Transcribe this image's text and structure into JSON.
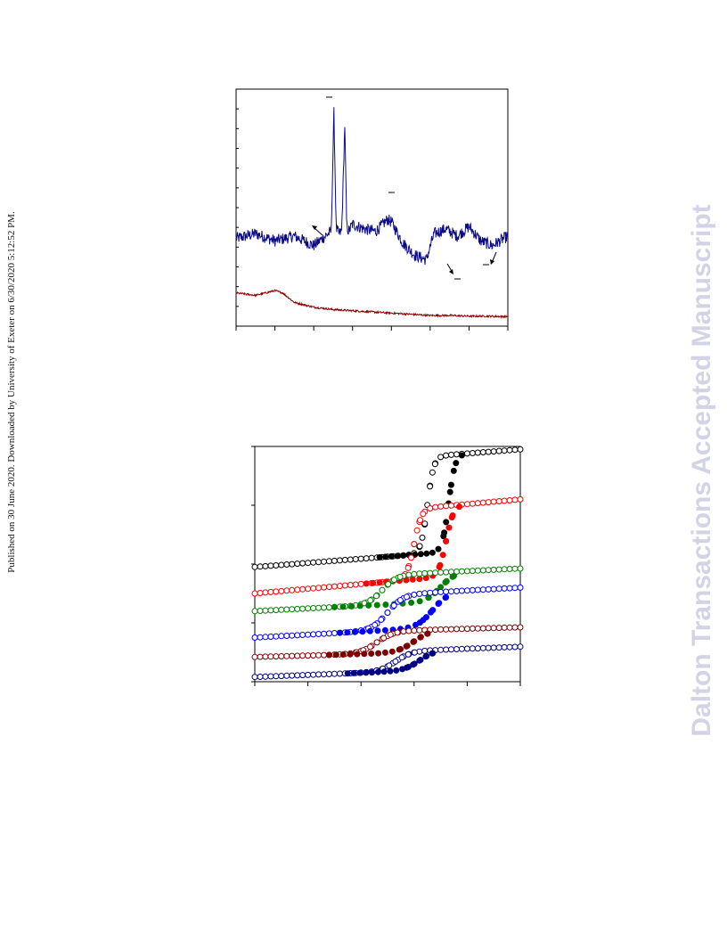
{
  "margin_note": "Published on 30 June 2020. Downloaded by University of Exeter on 6/30/2020 5:12:52 PM.",
  "watermark": "Dalton Transactions Accepted Manuscript",
  "colors": {
    "navy": "#0a0a8a",
    "darkred": "#8b0000",
    "black": "#000000",
    "red": "#ff0000",
    "green": "#008000",
    "blue": "#0000ff",
    "maroon": "#800000",
    "darkblue": "#000080"
  },
  "chart_data": [
    {
      "type": "line",
      "title": "",
      "xlabel": "",
      "ylabel": "",
      "grid": false,
      "x_range": [
        0,
        7
      ],
      "y_range": [
        0,
        10
      ],
      "x_ticks": 7,
      "y_ticks": 12,
      "series": [
        {
          "color": "navy",
          "x": [
            0.0,
            0.5,
            1.0,
            1.5,
            2.0,
            2.3,
            2.45,
            2.52,
            2.58,
            2.65,
            2.72,
            2.8,
            2.85,
            2.9,
            3.0,
            3.3,
            3.6,
            3.9,
            4.0,
            4.3,
            4.6,
            4.9,
            5.1,
            5.4,
            5.7,
            6.0,
            6.3,
            6.6,
            7.0
          ],
          "y": [
            3.7,
            3.9,
            3.6,
            3.8,
            3.4,
            3.8,
            4.0,
            9.0,
            4.1,
            3.9,
            4.0,
            8.5,
            4.2,
            4.0,
            4.3,
            4.1,
            4.0,
            4.5,
            4.4,
            3.5,
            3.0,
            2.8,
            3.9,
            4.1,
            3.8,
            4.2,
            3.6,
            3.4,
            3.8
          ]
        },
        {
          "color": "darkred",
          "x": [
            0.0,
            0.5,
            1.0,
            1.2,
            1.5,
            2.0,
            2.5,
            3.0,
            3.5,
            4.0,
            4.5,
            5.0,
            5.5,
            6.0,
            6.5,
            7.0
          ],
          "y": [
            1.4,
            1.3,
            1.5,
            1.4,
            1.0,
            0.8,
            0.7,
            0.65,
            0.6,
            0.55,
            0.5,
            0.45,
            0.45,
            0.42,
            0.42,
            0.4
          ]
        }
      ]
    },
    {
      "type": "scatter",
      "title": "",
      "xlabel": "",
      "ylabel": "",
      "grid": false,
      "x_range": [
        0,
        5
      ],
      "y_range": [
        0,
        4
      ],
      "x_ticks": 5,
      "y_ticks": 4,
      "series": [
        {
          "color": "black",
          "base": 1.95,
          "top": 3.6,
          "slope": 0.07,
          "T_up": 3.65,
          "T_down": 3.25,
          "w": 0.06
        },
        {
          "color": "red",
          "base": 1.5,
          "top": 2.7,
          "slope": 0.08,
          "T_up": 3.6,
          "T_down": 3.0,
          "w": 0.07
        },
        {
          "color": "green",
          "base": 1.2,
          "top": 1.7,
          "slope": 0.045,
          "T_up": 3.5,
          "T_down": 2.4,
          "w": 0.14
        },
        {
          "color": "blue",
          "base": 0.75,
          "top": 1.35,
          "slope": 0.05,
          "T_up": 3.35,
          "T_down": 2.5,
          "w": 0.15
        },
        {
          "color": "maroon",
          "base": 0.42,
          "top": 0.8,
          "slope": 0.025,
          "T_up": 3.0,
          "T_down": 2.3,
          "w": 0.16
        },
        {
          "color": "darkblue",
          "base": 0.08,
          "top": 0.42,
          "slope": 0.035,
          "T_up": 3.1,
          "T_down": 2.65,
          "w": 0.15
        }
      ]
    }
  ]
}
